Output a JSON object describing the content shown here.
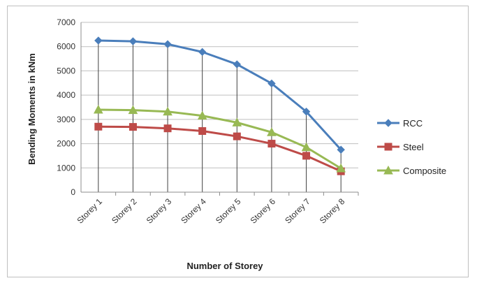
{
  "chart_data": {
    "type": "line",
    "title": "",
    "xlabel": "Number of Storey",
    "ylabel": "Bending Moments in kNm",
    "categories": [
      "Storey 1",
      "Storey 2",
      "Storey 3",
      "Storey 4",
      "Storey 5",
      "Storey 6",
      "Storey 7",
      "Storey 8"
    ],
    "ylim": [
      0,
      7000
    ],
    "yticks": [
      0,
      1000,
      2000,
      3000,
      4000,
      5000,
      6000,
      7000
    ],
    "grid": "horizontal",
    "legend_position": "right",
    "series": [
      {
        "name": "RCC",
        "color": "#4a7ebb",
        "marker": "diamond",
        "values": [
          6250,
          6220,
          6100,
          5780,
          5270,
          4480,
          3320,
          1750
        ]
      },
      {
        "name": "Steel",
        "color": "#be4b48",
        "marker": "square",
        "values": [
          2700,
          2690,
          2630,
          2520,
          2300,
          2000,
          1500,
          860
        ]
      },
      {
        "name": "Composite",
        "color": "#98b954",
        "marker": "triangle",
        "values": [
          3400,
          3380,
          3320,
          3150,
          2870,
          2470,
          1850,
          980
        ]
      }
    ]
  }
}
